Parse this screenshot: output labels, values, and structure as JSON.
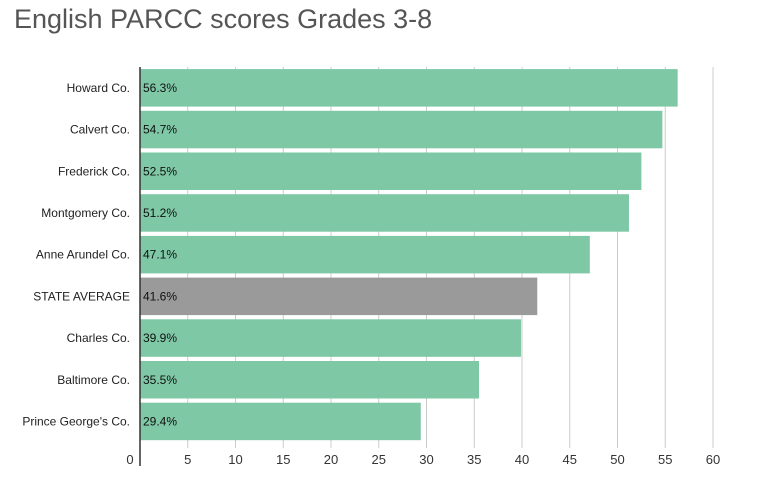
{
  "chart_data": {
    "type": "bar",
    "orientation": "horizontal",
    "title": "English PARCC scores Grades 3-8",
    "categories": [
      "Howard Co.",
      "Calvert Co.",
      "Frederick Co.",
      "Montgomery Co.",
      "Anne Arundel Co.",
      "STATE AVERAGE",
      "Charles Co.",
      "Baltimore Co.",
      "Prince George's Co."
    ],
    "values": [
      56.3,
      54.7,
      52.5,
      51.2,
      47.1,
      41.6,
      39.9,
      35.5,
      29.4
    ],
    "value_labels": [
      "56.3%",
      "54.7%",
      "52.5%",
      "51.2%",
      "47.1%",
      "41.6%",
      "39.9%",
      "35.5%",
      "29.4%"
    ],
    "highlight": "STATE AVERAGE",
    "xlim": [
      0,
      60
    ],
    "xticks": [
      0,
      5,
      10,
      15,
      20,
      25,
      30,
      35,
      40,
      45,
      50,
      55,
      60
    ],
    "grid": true,
    "xlabel": "",
    "ylabel": "",
    "colors": {
      "bar": "#7ec8a6",
      "highlight": "#9a9a9a",
      "grid": "#cccccc",
      "axis": "#333333"
    }
  }
}
